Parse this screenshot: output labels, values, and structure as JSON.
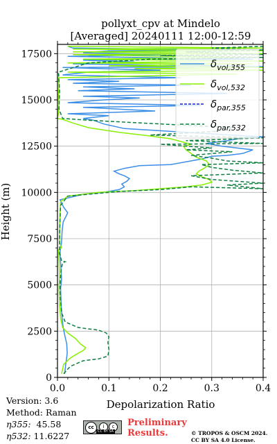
{
  "chart_data": {
    "type": "line",
    "title_line1": "pollyxt_cpv at Mindelo",
    "title_line2": "[Averaged] 20240111 12:00-12:59",
    "xlabel": "Depolarization Ratio",
    "ylabel": "Height (m)",
    "xlim": [
      0.0,
      0.4
    ],
    "ylim": [
      0,
      18000
    ],
    "xticks": [
      "0.0",
      "0.1",
      "0.2",
      "0.3",
      "0.4"
    ],
    "xtick_values": [
      0.0,
      0.1,
      0.2,
      0.3,
      0.4
    ],
    "yticks": [
      "0",
      "2500",
      "5000",
      "7500",
      "10000",
      "12500",
      "15000",
      "17500"
    ],
    "ytick_values": [
      0,
      2500,
      5000,
      7500,
      10000,
      12500,
      15000,
      17500
    ],
    "grid": true,
    "legend_position": "top-right",
    "series": [
      {
        "name": "δ_vol,355",
        "legend_main": "δ",
        "legend_sub": "vol,355",
        "color": "#3a8ee6",
        "dash": "solid",
        "points": [
          [
            0.014,
            200
          ],
          [
            0.016,
            700
          ],
          [
            0.019,
            1300
          ],
          [
            0.018,
            1800
          ],
          [
            0.014,
            2300
          ],
          [
            0.011,
            2700
          ],
          [
            0.009,
            3200
          ],
          [
            0.007,
            4000
          ],
          [
            0.006,
            4800
          ],
          [
            0.008,
            5300
          ],
          [
            0.007,
            5800
          ],
          [
            0.006,
            6200
          ],
          [
            0.005,
            6800
          ],
          [
            0.008,
            7300
          ],
          [
            0.009,
            7900
          ],
          [
            0.011,
            8400
          ],
          [
            0.02,
            8900
          ],
          [
            0.012,
            9200
          ],
          [
            0.005,
            9600
          ],
          [
            0.05,
            9900
          ],
          [
            0.09,
            10000
          ],
          [
            0.12,
            10150
          ],
          [
            0.13,
            10300
          ],
          [
            0.125,
            10450
          ],
          [
            0.135,
            10600
          ],
          [
            0.14,
            10750
          ],
          [
            0.13,
            10900
          ],
          [
            0.12,
            11000
          ],
          [
            0.11,
            11150
          ],
          [
            0.13,
            11300
          ],
          [
            0.16,
            11450
          ],
          [
            0.22,
            11500
          ],
          [
            0.25,
            11650
          ],
          [
            0.28,
            11800
          ],
          [
            0.3,
            11950
          ],
          [
            0.33,
            12000
          ],
          [
            0.36,
            12100
          ],
          [
            0.38,
            12300
          ],
          [
            0.32,
            12500
          ],
          [
            0.29,
            12650
          ],
          [
            0.33,
            12800
          ],
          [
            0.36,
            12950
          ],
          [
            0.4,
            13000
          ],
          [
            0.34,
            13100
          ],
          [
            0.25,
            13250
          ],
          [
            0.13,
            13450
          ],
          [
            0.09,
            13700
          ],
          [
            0.07,
            13900
          ],
          [
            0.05,
            14000
          ],
          [
            0.1,
            14150
          ],
          [
            0.02,
            14250
          ],
          [
            0.19,
            14400
          ],
          [
            0.05,
            14600
          ],
          [
            0.28,
            14700
          ],
          [
            0.02,
            14850
          ],
          [
            0.09,
            15000
          ],
          [
            0.16,
            15100
          ],
          [
            0.05,
            15200
          ],
          [
            0.33,
            15350
          ],
          [
            0.04,
            15500
          ],
          [
            0.15,
            15600
          ],
          [
            0.05,
            15700
          ],
          [
            0.26,
            15800
          ],
          [
            0.03,
            15900
          ],
          [
            0.12,
            16000
          ],
          [
            0.02,
            16100
          ],
          [
            0.24,
            16200
          ],
          [
            0.01,
            16350
          ],
          [
            0.06,
            16500
          ],
          [
            0.2,
            16600
          ],
          [
            0.01,
            16750
          ],
          [
            0.4,
            16800
          ],
          [
            0.03,
            16950
          ],
          [
            0.15,
            17050
          ],
          [
            0.05,
            17150
          ],
          [
            0.38,
            17200
          ],
          [
            0.02,
            17350
          ],
          [
            0.2,
            17450
          ],
          [
            0.05,
            17550
          ],
          [
            0.1,
            17650
          ],
          [
            0.35,
            17700
          ],
          [
            0.03,
            17800
          ],
          [
            0.02,
            17900
          ]
        ]
      },
      {
        "name": "δ_vol,532",
        "legend_main": "δ",
        "legend_sub": "vol,532",
        "color": "#88f000",
        "dash": "solid",
        "points": [
          [
            0.008,
            200
          ],
          [
            0.012,
            700
          ],
          [
            0.025,
            1050
          ],
          [
            0.04,
            1300
          ],
          [
            0.05,
            1450
          ],
          [
            0.055,
            1600
          ],
          [
            0.045,
            1800
          ],
          [
            0.035,
            2100
          ],
          [
            0.02,
            2400
          ],
          [
            0.01,
            2700
          ],
          [
            0.006,
            3200
          ],
          [
            0.004,
            4000
          ],
          [
            0.003,
            4800
          ],
          [
            0.004,
            5500
          ],
          [
            0.003,
            6300
          ],
          [
            0.002,
            6900
          ],
          [
            0.008,
            7000
          ],
          [
            0.004,
            7300
          ],
          [
            0.004,
            8000
          ],
          [
            0.005,
            8800
          ],
          [
            0.006,
            9500
          ],
          [
            0.02,
            9800
          ],
          [
            0.08,
            10000
          ],
          [
            0.15,
            10100
          ],
          [
            0.2,
            10200
          ],
          [
            0.25,
            10300
          ],
          [
            0.28,
            10400
          ],
          [
            0.3,
            10550
          ],
          [
            0.295,
            10700
          ],
          [
            0.28,
            10850
          ],
          [
            0.27,
            11000
          ],
          [
            0.275,
            11150
          ],
          [
            0.285,
            11300
          ],
          [
            0.295,
            11500
          ],
          [
            0.29,
            11700
          ],
          [
            0.27,
            11900
          ],
          [
            0.26,
            12100
          ],
          [
            0.25,
            12300
          ],
          [
            0.245,
            12500
          ],
          [
            0.26,
            12600
          ],
          [
            0.24,
            12750
          ],
          [
            0.22,
            12900
          ],
          [
            0.18,
            13050
          ],
          [
            0.12,
            13250
          ],
          [
            0.06,
            13500
          ],
          [
            0.03,
            13750
          ],
          [
            0.01,
            13950
          ],
          [
            0.0,
            14000
          ],
          [
            0.002,
            14300
          ],
          [
            0.003,
            14800
          ],
          [
            0.002,
            15300
          ],
          [
            0.003,
            15800
          ],
          [
            0.002,
            16200
          ],
          [
            0.35,
            16400
          ],
          [
            0.02,
            16500
          ],
          [
            0.4,
            16600
          ],
          [
            0.15,
            16700
          ],
          [
            0.4,
            16750
          ],
          [
            0.1,
            16850
          ],
          [
            0.38,
            16950
          ],
          [
            0.02,
            17000
          ],
          [
            0.4,
            17100
          ],
          [
            0.05,
            17200
          ],
          [
            0.35,
            17300
          ],
          [
            0.03,
            17450
          ],
          [
            0.4,
            17500
          ],
          [
            0.03,
            17600
          ],
          [
            0.4,
            17650
          ],
          [
            0.03,
            17750
          ],
          [
            0.4,
            17800
          ],
          [
            0.02,
            17900
          ]
        ]
      },
      {
        "name": "δ_par,355",
        "legend_main": "δ",
        "legend_sub": "par,355",
        "color": "#1a22b8",
        "dash": "4,2",
        "points": []
      },
      {
        "name": "δ_par,532",
        "legend_main": "δ",
        "legend_sub": "par,532",
        "color": "#0c7d3e",
        "dash": "5,3",
        "points": [
          [
            0.012,
            200
          ],
          [
            0.025,
            600
          ],
          [
            0.05,
            900
          ],
          [
            0.08,
            1000
          ],
          [
            0.098,
            1150
          ],
          [
            0.1,
            1500
          ],
          [
            0.098,
            1900
          ],
          [
            0.1,
            2200
          ],
          [
            0.095,
            2400
          ],
          [
            0.08,
            2550
          ],
          [
            0.07,
            2600
          ],
          [
            0.06,
            2620
          ],
          [
            0.04,
            2700
          ],
          [
            0.015,
            3000
          ],
          [
            0.008,
            3500
          ],
          [
            0.006,
            4200
          ],
          [
            0.005,
            5000
          ],
          [
            0.007,
            5800
          ],
          [
            0.01,
            6200
          ],
          [
            0.015,
            6250
          ],
          [
            0.008,
            6300
          ],
          [
            0.004,
            6700
          ],
          [
            0.004,
            7500
          ],
          [
            0.005,
            8500
          ],
          [
            0.006,
            9300
          ],
          [
            0.02,
            9800
          ],
          [
            0.12,
            10050
          ],
          [
            0.2,
            10150
          ],
          [
            0.26,
            10300
          ],
          [
            0.4,
            10200
          ],
          [
            0.33,
            10400
          ],
          [
            0.4,
            10500
          ],
          [
            0.3,
            10700
          ],
          [
            0.26,
            10900
          ],
          [
            0.4,
            11050
          ],
          [
            0.34,
            11200
          ],
          [
            0.3,
            11350
          ],
          [
            0.28,
            11500
          ],
          [
            0.4,
            11600
          ],
          [
            0.33,
            11700
          ],
          [
            0.3,
            11850
          ],
          [
            0.26,
            12000
          ],
          [
            0.34,
            12200
          ],
          [
            0.25,
            12300
          ],
          [
            0.3,
            12400
          ],
          [
            0.2,
            12600
          ],
          [
            0.4,
            12650
          ],
          [
            0.25,
            12800
          ],
          [
            0.4,
            12950
          ],
          [
            0.18,
            13100
          ],
          [
            0.31,
            13300
          ],
          [
            0.34,
            13500
          ],
          [
            0.13,
            13800
          ],
          [
            0.06,
            13900
          ],
          [
            0.01,
            14000
          ],
          [
            0.003,
            14500
          ],
          [
            0.004,
            15500
          ],
          [
            0.002,
            16500
          ],
          [
            0.06,
            17000
          ],
          [
            0.18,
            17200
          ],
          [
            0.4,
            17300
          ],
          [
            0.2,
            17400
          ],
          [
            0.4,
            17450
          ],
          [
            0.25,
            17600
          ],
          [
            0.4,
            17700
          ],
          [
            0.3,
            17800
          ],
          [
            0.4,
            17900
          ]
        ]
      }
    ]
  },
  "footer": {
    "version": "Version: 3.6",
    "method": "Method: Raman",
    "eta355_label": "η355:",
    "eta355_value": "45.58",
    "eta532_label": "η532:",
    "eta532_value": "11.6227",
    "preliminary_line1": "Preliminary",
    "preliminary_line2": "Results.",
    "copyright_line1": "© TROPOS & OSCM 2024.",
    "copyright_line2": "CC BY SA 4.0 License.",
    "license_badge": "CC BY SA"
  }
}
